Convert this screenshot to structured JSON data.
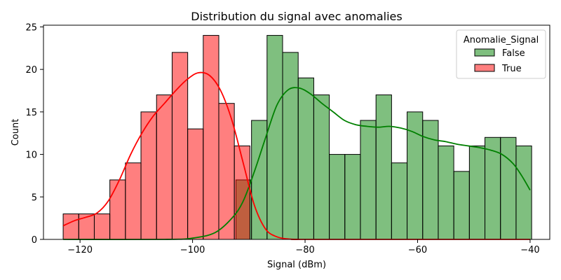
{
  "chart_data": {
    "type": "bar",
    "title": "Distribution du signal avec anomalies",
    "xlabel": "Signal (dBm)",
    "ylabel": "Count",
    "xlim": [
      -126.5,
      -36.5
    ],
    "ylim": [
      0,
      25.2
    ],
    "xticks": [
      -120,
      -100,
      -80,
      -60,
      -40
    ],
    "xtick_labels": [
      "−120",
      "−100",
      "−80",
      "−60",
      "−40"
    ],
    "yticks": [
      0,
      5,
      10,
      15,
      20,
      25
    ],
    "ytick_labels": [
      "0",
      "5",
      "10",
      "15",
      "20",
      "25"
    ],
    "grid": false,
    "legend": {
      "title": "Anomalie_Signal",
      "placement": "top-right"
    },
    "bin_width": 2.766,
    "series": [
      {
        "name": "False",
        "color": "#008000",
        "fill_opacity": 0.5,
        "bins_left": [
          -92.29,
          -89.52,
          -86.76,
          -83.99,
          -81.22,
          -78.46,
          -75.69,
          -72.93,
          -70.16,
          -67.39,
          -64.63,
          -61.86,
          -59.09,
          -56.33,
          -53.56,
          -50.79,
          -48.03,
          -45.26,
          -42.49
        ],
        "counts": [
          7,
          14,
          24,
          22,
          19,
          17,
          10,
          10,
          14,
          17,
          9,
          15,
          14,
          11,
          8,
          11,
          12,
          12,
          11
        ],
        "kde_x": [
          -123,
          -105,
          -100,
          -96,
          -93,
          -91,
          -89,
          -87,
          -85,
          -83,
          -81,
          -79,
          -77,
          -75,
          -73,
          -71,
          -69,
          -67,
          -65,
          -63,
          -61,
          -59,
          -57,
          -55,
          -53,
          -51,
          -49,
          -47,
          -45,
          -43,
          -41.5,
          -40
        ],
        "kde_y": [
          0,
          0,
          0.15,
          0.8,
          2.5,
          4.5,
          8,
          12,
          15.8,
          17.6,
          17.8,
          17.1,
          16,
          15,
          14,
          13.5,
          13.3,
          13.2,
          13.3,
          13.1,
          12.7,
          12.1,
          11.7,
          11.5,
          11.2,
          11,
          10.8,
          10.5,
          10,
          8.9,
          7.5,
          5.8
        ]
      },
      {
        "name": "True",
        "color": "#ff0000",
        "fill_opacity": 0.5,
        "bins_left": [
          -123.0,
          -120.23,
          -117.47,
          -114.7,
          -111.93,
          -109.17,
          -106.4,
          -103.63,
          -100.87,
          -98.1,
          -95.34,
          -92.57
        ],
        "counts": [
          3,
          3,
          3,
          7,
          9,
          15,
          17,
          22,
          13,
          24,
          16,
          11
        ],
        "kde_x": [
          -123,
          -121,
          -119,
          -117,
          -115,
          -113,
          -111,
          -109,
          -107,
          -105,
          -103,
          -101,
          -99,
          -97,
          -95,
          -93,
          -91,
          -89,
          -87,
          -85,
          -83,
          -81,
          -79,
          -40
        ],
        "kde_y": [
          1.6,
          2.2,
          2.6,
          3.1,
          4.5,
          7,
          10,
          12.5,
          14.5,
          16,
          17.5,
          18.8,
          19.6,
          19.3,
          17.5,
          14,
          9,
          4,
          1.2,
          0.3,
          0.05,
          0,
          0,
          0
        ]
      }
    ]
  }
}
